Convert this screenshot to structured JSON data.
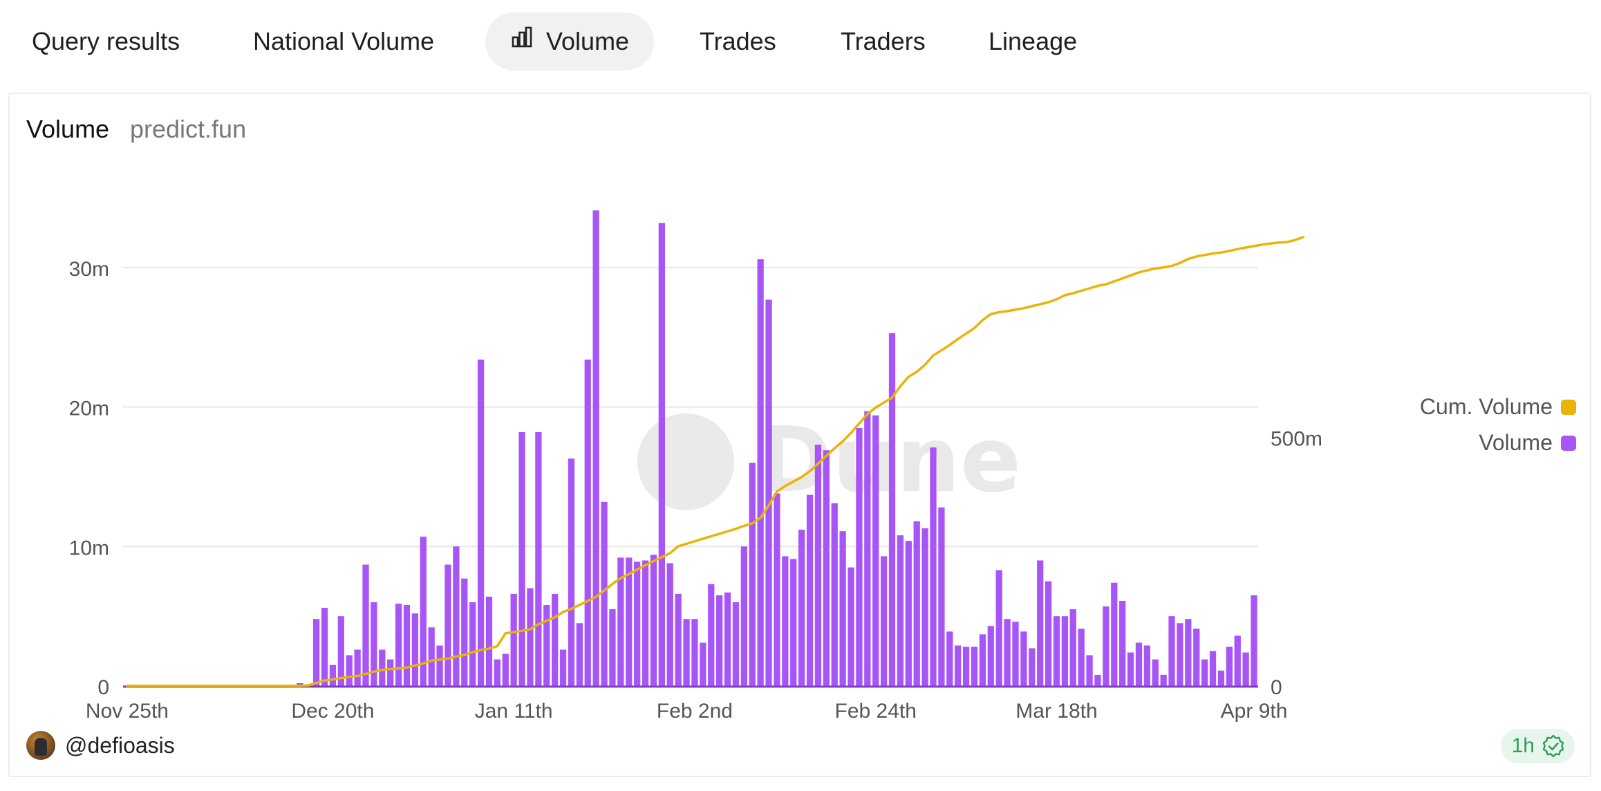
{
  "tabs": [
    {
      "label": "Query results"
    },
    {
      "label": "National Volume"
    },
    {
      "label": "Volume",
      "icon": "bar-chart-icon",
      "active": true
    },
    {
      "label": "Trades"
    },
    {
      "label": "Traders"
    },
    {
      "label": "Lineage"
    }
  ],
  "card": {
    "title": "Volume",
    "subtitle": "predict.fun"
  },
  "footer": {
    "author": "@defioasis",
    "refresh": "1h"
  },
  "colors": {
    "volume": "#a855f7",
    "cumulative": "#eab308",
    "grid": "#e8e8e8",
    "axis_text": "#555555",
    "watermark": "#e6e6e6"
  },
  "watermark": "Dune",
  "chart_data": {
    "type": "bar+line",
    "title": "Volume",
    "subtitle": "predict.fun",
    "legend_position": "right",
    "x_tick_labels": [
      "Nov 25th",
      "Dec 20th",
      "Jan 11th",
      "Feb 2nd",
      "Feb 24th",
      "Mar 18th",
      "Apr 9th"
    ],
    "y_left": {
      "ticks": [
        0,
        10,
        20,
        30
      ],
      "tick_labels": [
        "0",
        "10m",
        "20m",
        "30m"
      ],
      "unit": "m",
      "ylim": [
        0,
        36
      ]
    },
    "y_right": {
      "ticks": [
        0,
        500
      ],
      "tick_labels": [
        "0",
        "500m"
      ],
      "unit": "m",
      "ylim": [
        0,
        1010
      ]
    },
    "series": [
      {
        "name": "Cum. Volume",
        "axis": "right",
        "kind": "line",
        "values": [
          0,
          0,
          0,
          0,
          0,
          0,
          0,
          0,
          0,
          0,
          0,
          0,
          0,
          0,
          0,
          0,
          0,
          0,
          0,
          0,
          0,
          0,
          1,
          6,
          11,
          13,
          16,
          18,
          20,
          24,
          29,
          32,
          34,
          35,
          37,
          41,
          45,
          51,
          53,
          55,
          59,
          62,
          68,
          72,
          75,
          80,
          106,
          108,
          111,
          114,
          124,
          131,
          138,
          149,
          155,
          163,
          171,
          179,
          192,
          205,
          217,
          225,
          234,
          243,
          251,
          259,
          267,
          281,
          286,
          291,
          296,
          301,
          306,
          311,
          316,
          322,
          327,
          338,
          363,
          391,
          402,
          411,
          420,
          432,
          447,
          463,
          478,
          492,
          509,
          528,
          547,
          560,
          570,
          580,
          603,
          622,
          632,
          646,
          665,
          675,
          686,
          698,
          709,
          720,
          736,
          748,
          752,
          754,
          757,
          760,
          764,
          768,
          772,
          778,
          786,
          790,
          795,
          800,
          805,
          808,
          814,
          820,
          826,
          832,
          836,
          840,
          842,
          845,
          851,
          859,
          864,
          867,
          870,
          872,
          875,
          879,
          882,
          885,
          888,
          890,
          892,
          893,
          897,
          903
        ],
        "total_approx": 903
      },
      {
        "name": "Volume",
        "axis": "left",
        "kind": "bar",
        "values": [
          0,
          0,
          0,
          0,
          0,
          0,
          0,
          0,
          0,
          0,
          0,
          0,
          0,
          0,
          0,
          0,
          0,
          0,
          0,
          0,
          0,
          0.2,
          0,
          4.8,
          5.6,
          1.5,
          5.0,
          2.2,
          2.6,
          8.7,
          6.0,
          2.6,
          1.9,
          5.9,
          5.8,
          5.2,
          10.7,
          4.2,
          2.9,
          8.7,
          10.0,
          7.7,
          6.0,
          23.4,
          6.4,
          1.9,
          2.3,
          6.6,
          18.2,
          7.0,
          18.2,
          5.8,
          6.6,
          2.6,
          16.3,
          4.5,
          23.4,
          34.1,
          13.2,
          5.5,
          9.2,
          9.2,
          8.9,
          9.0,
          9.4,
          33.2,
          8.8,
          6.6,
          4.8,
          4.8,
          3.1,
          7.3,
          6.5,
          6.7,
          6.0,
          10.0,
          16.0,
          30.6,
          27.7,
          13.8,
          9.3,
          9.1,
          11.2,
          13.7,
          17.3,
          16.9,
          13.1,
          11.1,
          8.5,
          18.5,
          19.7,
          19.4,
          9.3,
          25.3,
          10.8,
          10.4,
          11.8,
          11.3,
          17.1,
          12.8,
          3.9,
          2.9,
          2.8,
          2.8,
          3.7,
          4.3,
          8.3,
          4.8,
          4.6,
          3.9,
          2.7,
          9.0,
          7.5,
          5.0,
          5.0,
          5.5,
          4.1,
          2.2,
          0.8,
          5.7,
          7.4,
          6.1,
          2.4,
          3.1,
          2.9,
          1.9,
          0.8,
          5.0,
          4.5,
          4.8,
          4.1,
          1.9,
          2.5,
          1.1,
          2.8,
          3.6,
          2.4,
          6.5
        ]
      }
    ]
  }
}
